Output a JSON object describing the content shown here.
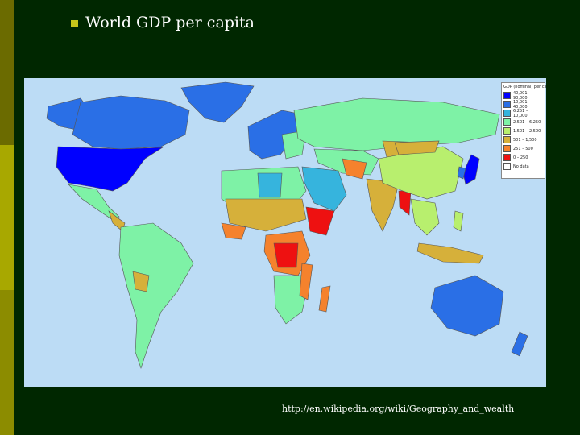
{
  "slide": {
    "title": "World GDP per capita",
    "source": "http://en.wikipedia.org/wiki/Geography_and_wealth"
  },
  "legend": {
    "title": "GDP (nominal) per capita",
    "items": [
      {
        "label": "40,001 – 90,000",
        "color": "#0000ff"
      },
      {
        "label": "10,001 – 40,000",
        "color": "#2a6fe6"
      },
      {
        "label": "6,251 – 10,000",
        "color": "#36b4dd"
      },
      {
        "label": "2,501 – 6,250",
        "color": "#7ef2a6"
      },
      {
        "label": "1,501 – 2,500",
        "color": "#b8ef6e"
      },
      {
        "label": "501 – 1,500",
        "color": "#d6b03a"
      },
      {
        "label": "251 – 500",
        "color": "#f5822d"
      },
      {
        "label": "0 – 250",
        "color": "#ee1111"
      },
      {
        "label": "No data",
        "color": "#ffffff"
      }
    ]
  },
  "colors": {
    "background": "#002700",
    "ocean": "#bcdcf5",
    "bullet": "#c7c71a"
  }
}
